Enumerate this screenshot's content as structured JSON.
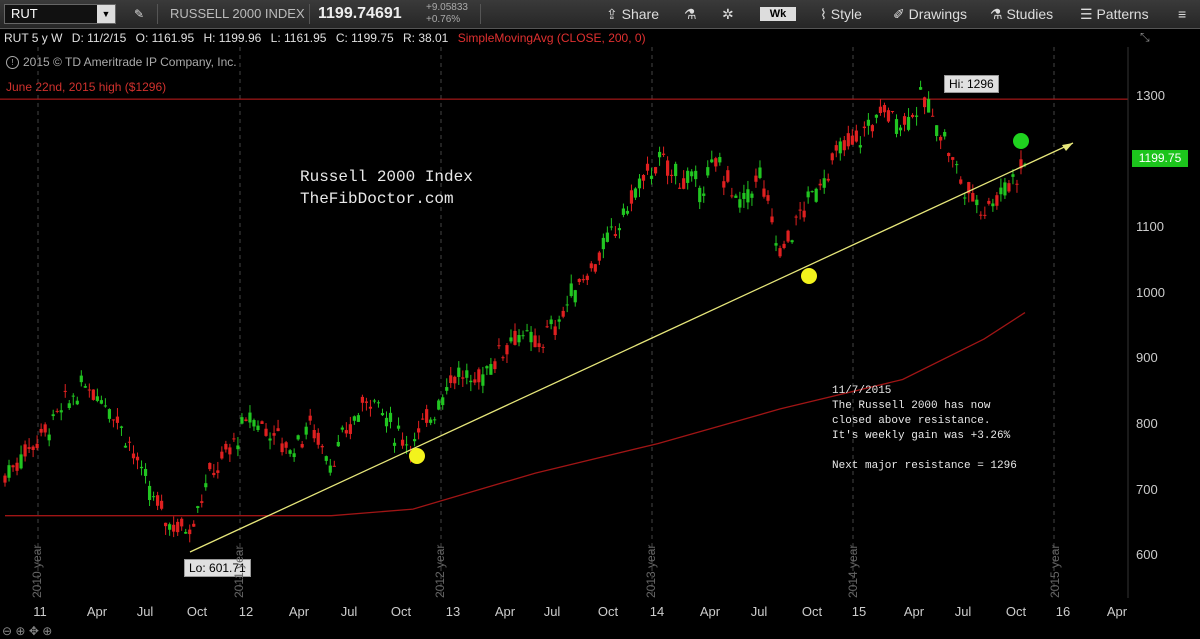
{
  "toolbar": {
    "symbol": "RUT",
    "instrument": "RUSSELL 2000 INDEX",
    "last": "1199.74691",
    "change": "+9.05833",
    "change_pct": "+0.76%",
    "share": "Share",
    "interval": "Wk",
    "style": "Style",
    "drawings": "Drawings",
    "studies": "Studies",
    "patterns": "Patterns"
  },
  "infobar": {
    "period": "RUT 5 y W",
    "date": "D: 11/2/15",
    "open": "O: 1161.95",
    "high": "H: 1199.96",
    "low": "L: 1161.95",
    "close": "C: 1199.75",
    "range": "R: 38.01",
    "study": "SimpleMovingAvg (CLOSE, 200, 0)"
  },
  "copyright": "2015 © TD Ameritrade IP Company, Inc.",
  "resistance_label": "June 22nd, 2015 high ($1296)",
  "watermark": {
    "line1": "Russell 2000 Index",
    "line2": "TheFibDoctor.com"
  },
  "note": {
    "l1": "11/7/2015",
    "l2": "The Russell 2000 has now",
    "l3": "closed above resistance.",
    "l4": "It's weekly gain was +3.26%",
    "l5": "Next major resistance = 1296"
  },
  "callouts": {
    "hi": "Hi: 1296",
    "lo": "Lo: 601.71"
  },
  "price_tag": "1199.75",
  "colors": {
    "up": "#21c521",
    "down": "#e02020",
    "sma": "#a01515",
    "trend": "#e6e67a",
    "resist": "#c81e1e"
  },
  "chart_data": {
    "type": "candlestick",
    "title": "RUSSELL 2000 INDEX",
    "ylim": [
      560,
      1370
    ],
    "y_ticks": [
      600,
      700,
      800,
      900,
      1000,
      1100,
      1200,
      1300
    ],
    "x_ticks": [
      "11",
      "Apr",
      "Jul",
      "Oct",
      "12",
      "Apr",
      "Jul",
      "Oct",
      "13",
      "Apr",
      "Jul",
      "Oct",
      "14",
      "Apr",
      "Jul",
      "Oct",
      "15",
      "Apr",
      "Jul",
      "Oct",
      "16",
      "Apr"
    ],
    "year_labels": [
      "2010 year",
      "2011 year",
      "2012 year",
      "2013 year",
      "2014 year",
      "2015 year"
    ],
    "resistance": 1296,
    "high": 1296,
    "low": 601.71,
    "last": 1199.75,
    "price_path": [
      [
        0,
        720
      ],
      [
        1,
        760
      ],
      [
        2,
        790
      ],
      [
        3,
        830
      ],
      [
        4,
        860
      ],
      [
        5,
        835
      ],
      [
        6,
        780
      ],
      [
        7,
        700
      ],
      [
        8,
        650
      ],
      [
        9,
        640
      ],
      [
        10,
        720
      ],
      [
        11,
        760
      ],
      [
        12,
        810
      ],
      [
        13,
        790
      ],
      [
        14,
        760
      ],
      [
        15,
        800
      ],
      [
        16,
        740
      ],
      [
        17,
        800
      ],
      [
        18,
        850
      ],
      [
        19,
        790
      ],
      [
        20,
        770
      ],
      [
        21,
        820
      ],
      [
        22,
        880
      ],
      [
        23,
        860
      ],
      [
        24,
        900
      ],
      [
        25,
        940
      ],
      [
        26,
        920
      ],
      [
        27,
        950
      ],
      [
        28,
        1010
      ],
      [
        29,
        1050
      ],
      [
        30,
        1100
      ],
      [
        31,
        1160
      ],
      [
        32,
        1200
      ],
      [
        33,
        1180
      ],
      [
        34,
        1160
      ],
      [
        35,
        1200
      ],
      [
        36,
        1130
      ],
      [
        37,
        1180
      ],
      [
        38,
        1060
      ],
      [
        39,
        1120
      ],
      [
        40,
        1170
      ],
      [
        41,
        1220
      ],
      [
        42,
        1240
      ],
      [
        43,
        1280
      ],
      [
        44,
        1260
      ],
      [
        45,
        1296
      ],
      [
        46,
        1240
      ],
      [
        47,
        1160
      ],
      [
        48,
        1130
      ],
      [
        49,
        1160
      ],
      [
        50,
        1200
      ]
    ],
    "sma_path": [
      [
        0,
        660
      ],
      [
        16,
        660
      ],
      [
        20,
        670
      ],
      [
        26,
        725
      ],
      [
        32,
        770
      ],
      [
        38,
        823
      ],
      [
        44,
        868
      ],
      [
        48,
        930
      ],
      [
        50,
        970
      ]
    ]
  }
}
